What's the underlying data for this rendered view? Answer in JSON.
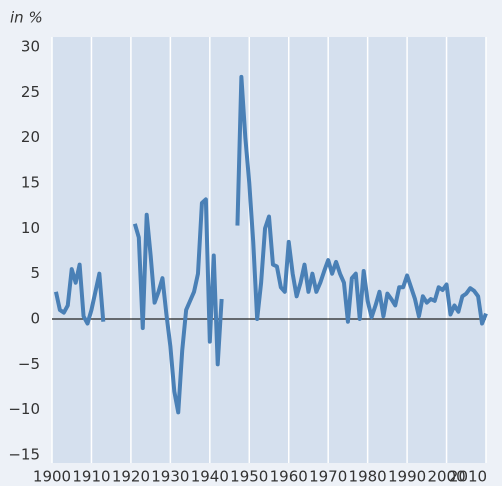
{
  "chart_data": {
    "type": "line",
    "y_label": "in %",
    "x": [
      1901,
      1902,
      1903,
      1904,
      1905,
      1906,
      1907,
      1908,
      1909,
      1910,
      1911,
      1912,
      1913,
      1914,
      1915,
      1916,
      1917,
      1918,
      1919,
      1920,
      1921,
      1922,
      1923,
      1924,
      1925,
      1926,
      1927,
      1928,
      1929,
      1930,
      1931,
      1932,
      1933,
      1934,
      1935,
      1936,
      1937,
      1938,
      1939,
      1940,
      1941,
      1942,
      1943,
      1944,
      1945,
      1946,
      1947,
      1948,
      1949,
      1950,
      1951,
      1952,
      1953,
      1954,
      1955,
      1956,
      1957,
      1958,
      1959,
      1960,
      1961,
      1962,
      1963,
      1964,
      1965,
      1966,
      1967,
      1968,
      1969,
      1970,
      1971,
      1972,
      1973,
      1974,
      1975,
      1976,
      1977,
      1978,
      1979,
      1980,
      1981,
      1982,
      1983,
      1984,
      1985,
      1986,
      1987,
      1988,
      1989,
      1990,
      1991,
      1992,
      1993,
      1994,
      1995,
      1996,
      1997,
      1998,
      1999,
      2000,
      2001,
      2002,
      2003,
      2004,
      2005,
      2006,
      2007,
      2008,
      2009,
      2010
    ],
    "series": [
      {
        "color": "#4a80b6",
        "values": [
          3,
          1,
          0.7,
          1.5,
          5.5,
          4,
          6,
          0.3,
          -0.5,
          1,
          3,
          5,
          -0.3,
          null,
          null,
          null,
          null,
          null,
          null,
          null,
          10.5,
          9,
          -1,
          11.5,
          7,
          1.8,
          3,
          4.5,
          0.5,
          -3,
          -8,
          -10.3,
          -3.5,
          1,
          2,
          3,
          5,
          12.8,
          13.2,
          -2.5,
          7,
          -5,
          2.2,
          null,
          null,
          null,
          10.3,
          26.7,
          20,
          15,
          8.5,
          0,
          4,
          10,
          11.3,
          6,
          5.8,
          3.5,
          3,
          8.5,
          5,
          2.5,
          4,
          6,
          3,
          5,
          3,
          4,
          5.3,
          6.5,
          5,
          6.3,
          5,
          4,
          -0.3,
          4.5,
          5,
          0,
          5.3,
          2,
          0.2,
          1.5,
          3,
          0.3,
          2.8,
          2.2,
          1.5,
          3.5,
          3.5,
          4.8,
          3.5,
          2.2,
          0.3,
          2.5,
          1.8,
          2.2,
          2,
          3.5,
          3.2,
          3.8,
          0.5,
          1.5,
          0.8,
          2.5,
          2.8,
          3.4,
          3.1,
          2.5,
          -0.5,
          0.6
        ]
      }
    ],
    "xlim": [
      1900,
      2010
    ],
    "xticks": [
      1900,
      1910,
      1920,
      1930,
      1940,
      1950,
      1960,
      1970,
      1980,
      1990,
      2000,
      2010
    ],
    "ylim": [
      -15,
      30
    ],
    "yticks": [
      {
        "value": -15,
        "label": "−15"
      },
      {
        "value": -10,
        "label": "−10"
      },
      {
        "value": -5,
        "label": "−5"
      },
      0,
      5,
      10,
      15,
      20,
      25,
      30
    ],
    "grid": true
  }
}
